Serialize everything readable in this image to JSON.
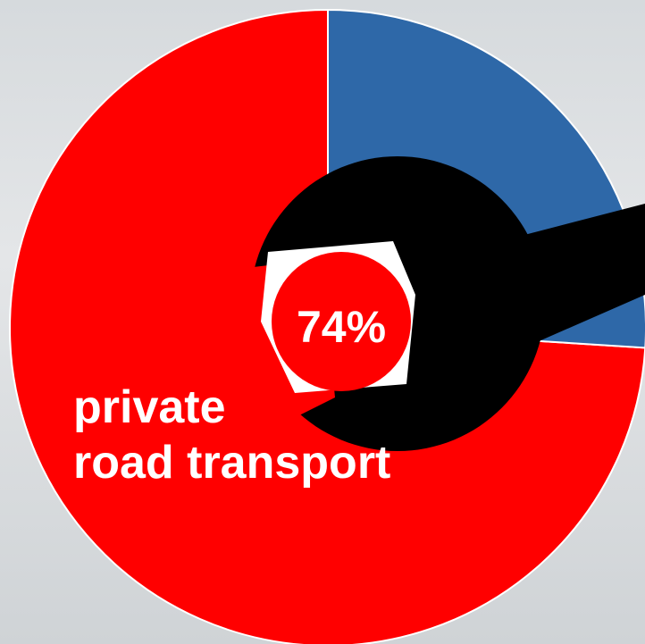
{
  "chart_data": {
    "type": "pie",
    "categories": [
      "private\nroad transport",
      null
    ],
    "values": [
      74,
      26
    ],
    "value_labels": [
      "74%",
      null
    ],
    "colors": [
      "#ff0000",
      "#2e68a8"
    ],
    "direction": "counterclockwise"
  }
}
